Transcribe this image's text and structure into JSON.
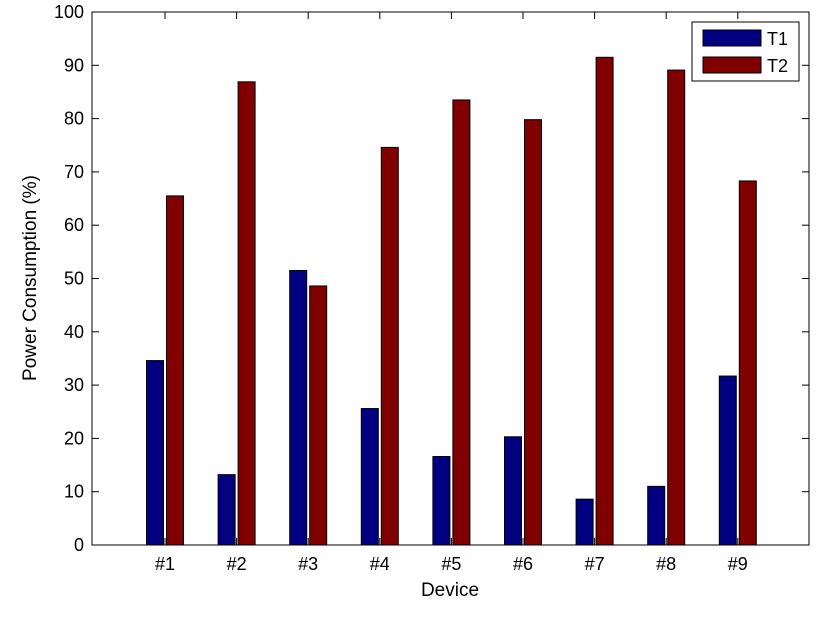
{
  "chart_data": {
    "type": "bar",
    "xlabel": "Device",
    "ylabel": "Power Consumption (%)",
    "categories": [
      "#1",
      "#2",
      "#3",
      "#4",
      "#5",
      "#6",
      "#7",
      "#8",
      "#9"
    ],
    "series": [
      {
        "name": "T1",
        "color": "#000080",
        "values": [
          34.6,
          13.2,
          51.5,
          25.6,
          16.6,
          20.3,
          8.6,
          11.0,
          31.7
        ]
      },
      {
        "name": "T2",
        "color": "#800000",
        "values": [
          65.5,
          86.9,
          48.6,
          74.6,
          83.5,
          79.8,
          91.5,
          89.1,
          68.3
        ]
      }
    ],
    "ylim": [
      0,
      100
    ],
    "yticks": [
      0,
      10,
      20,
      30,
      40,
      50,
      60,
      70,
      80,
      90,
      100
    ],
    "grid": false,
    "legend_position": "top-right"
  }
}
